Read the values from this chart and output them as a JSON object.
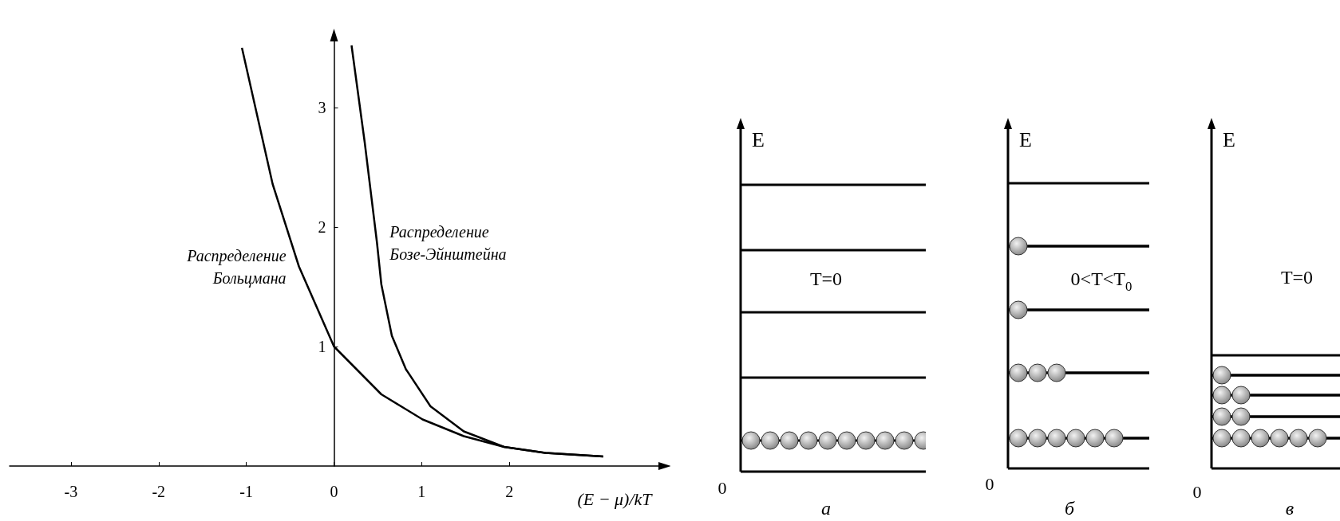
{
  "chart_data": [
    {
      "type": "line",
      "xlabel": "(E − μ)/kT",
      "series": [
        {
          "name": "Распределение Больцмана",
          "color": "#000000",
          "x": [
            -1.05,
            -0.7,
            -0.4,
            0,
            0.54,
            1.01,
            1.48,
            1.94,
            2.41,
            3.07
          ],
          "values": [
            3.5,
            2.36,
            1.67,
            1,
            0.6,
            0.39,
            0.25,
            0.16,
            0.11,
            0.08
          ]
        },
        {
          "name": "Распределение Бозе-Эйнштейна",
          "color": "#000000",
          "x": [
            0.2,
            0.35,
            0.49,
            0.54,
            0.66,
            0.82,
            1.1,
            1.48,
            1.94,
            2.41,
            3.07
          ],
          "values": [
            3.52,
            2.71,
            1.87,
            1.52,
            1.09,
            0.81,
            0.5,
            0.29,
            0.16,
            0.11,
            0.08
          ]
        }
      ],
      "xlim": [
        -3.7,
        3.7
      ],
      "xticks": [
        -3,
        -2,
        -1,
        0,
        1,
        2
      ],
      "ylim": [
        0,
        3.6
      ],
      "yticks": [
        1,
        2,
        3
      ],
      "marker": "none"
    },
    {
      "type": "other",
      "ylabel": "E",
      "annotations": [
        "T=0",
        "0"
      ],
      "xlabel": "а"
    },
    {
      "type": "other",
      "ylabel": "E",
      "annotations": [
        "0<T<T$_{0}$",
        "0"
      ],
      "xlabel": "б"
    },
    {
      "type": "other",
      "ylabel": "E",
      "annotations": [
        "T=0",
        "0"
      ],
      "xlabel": "в"
    }
  ]
}
